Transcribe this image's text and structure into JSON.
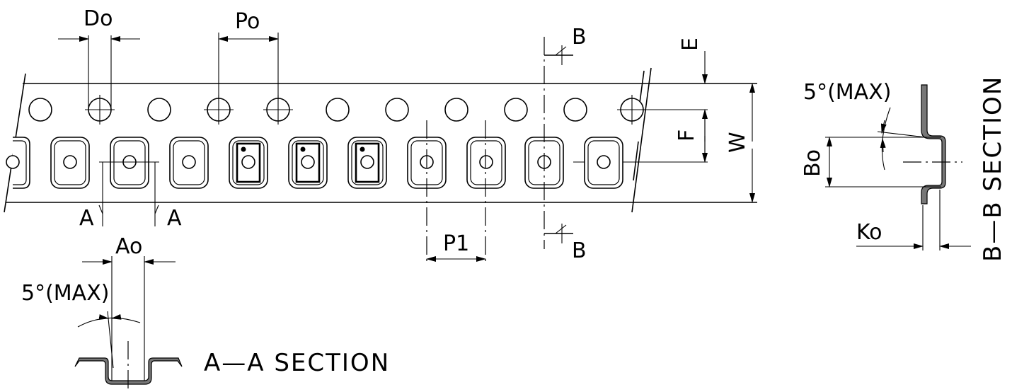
{
  "labels": {
    "do": "Do",
    "po": "Po",
    "p1": "P1",
    "ao": "Ao",
    "bo": "Bo",
    "ko": "Ko",
    "e": "E",
    "f": "F",
    "w": "W",
    "a_left": "A",
    "a_right": "A",
    "b_top": "B",
    "b_bottom": "B",
    "angle_aa": "5°(MAX)",
    "angle_bb": "5°(MAX)",
    "section_aa": "A—A  SECTION",
    "section_bb": "B—B  SECTION"
  }
}
